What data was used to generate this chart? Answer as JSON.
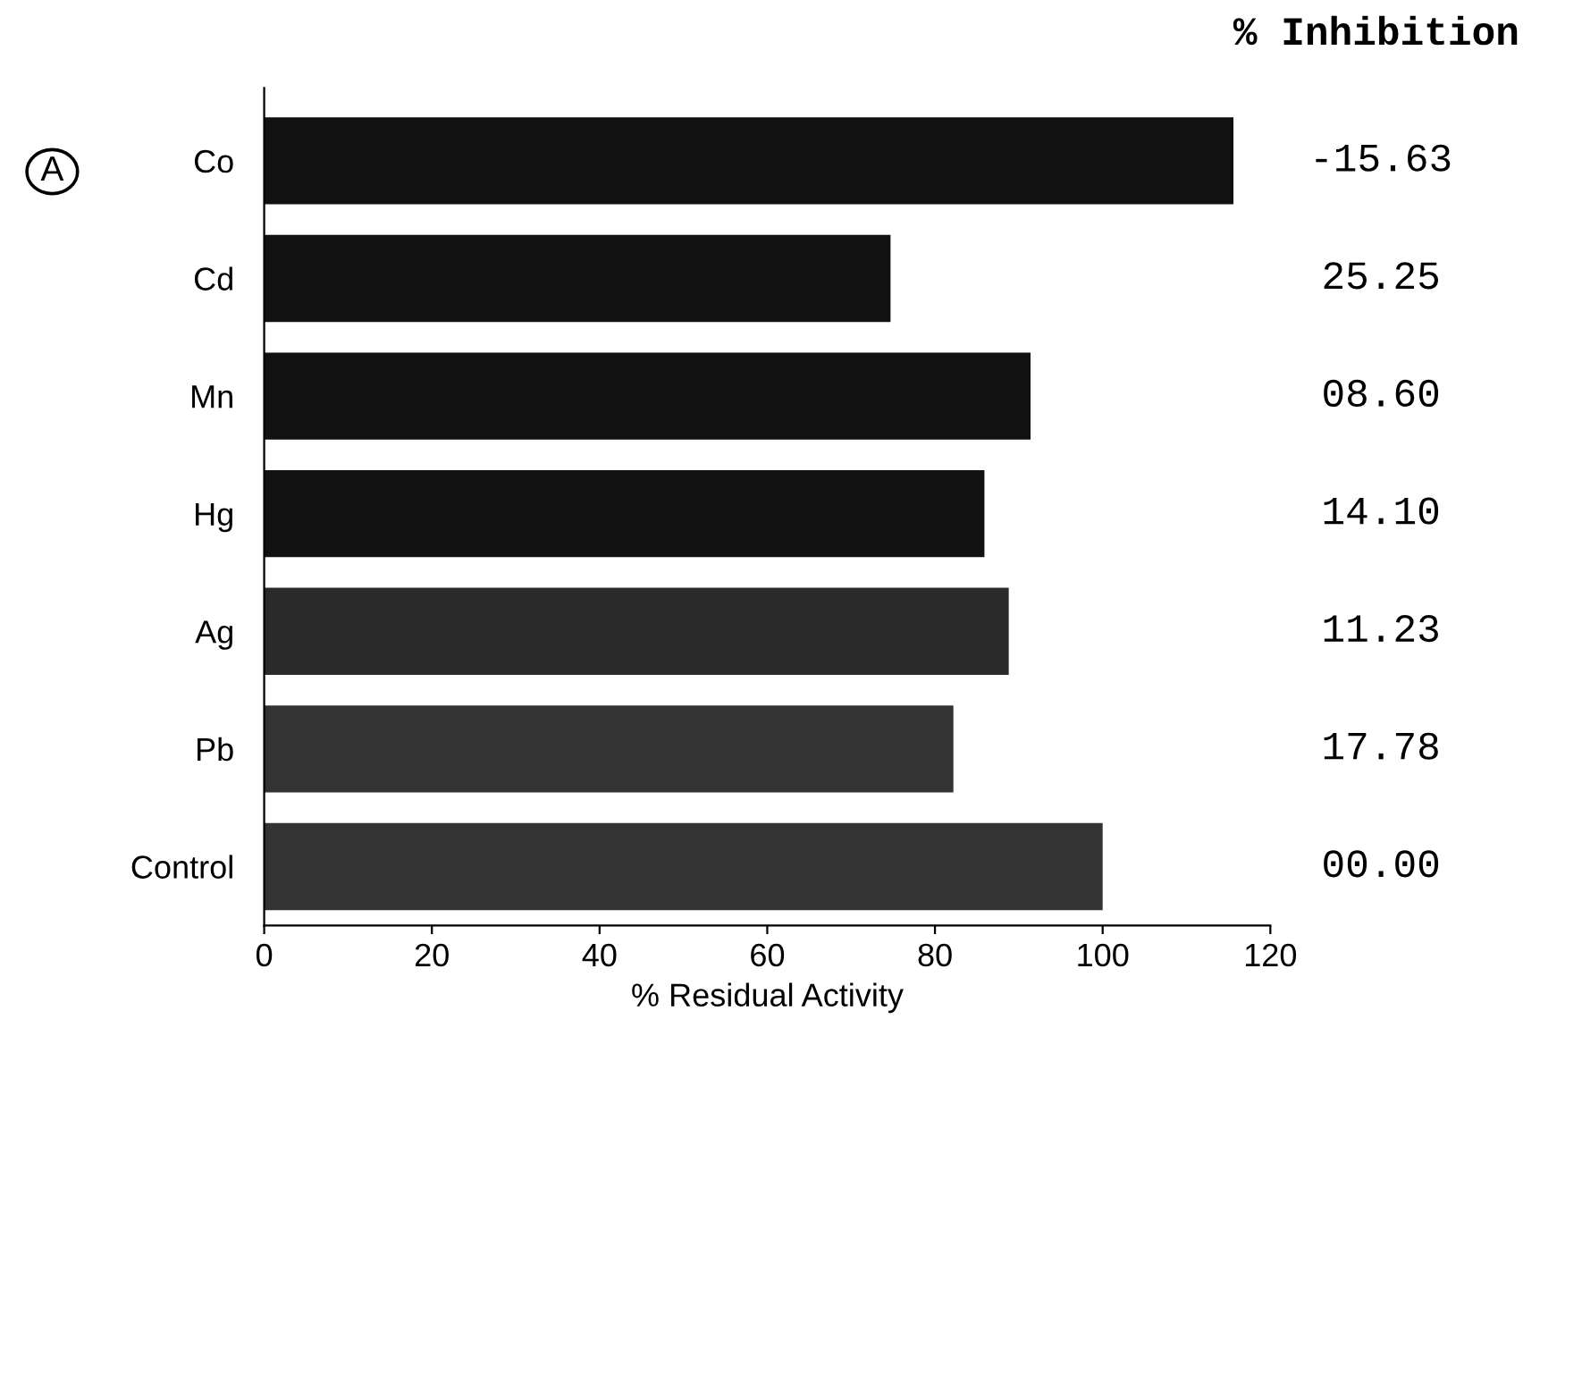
{
  "chart_data": {
    "type": "bar",
    "orientation": "horizontal",
    "xlabel": "% Residual Activity",
    "categories": [
      "Co",
      "Cd",
      "Mn",
      "Hg",
      "Ag",
      "Pb",
      "Control"
    ],
    "values": [
      115.6,
      74.7,
      91.4,
      85.9,
      88.8,
      82.2,
      100
    ],
    "colors": [
      "#111111",
      "#111111",
      "#111111",
      "#111111",
      "#2a2a2a",
      "#333333",
      "#333333"
    ],
    "xlim": [
      0,
      120
    ],
    "xticks": [
      0,
      20,
      40,
      60,
      80,
      100,
      120
    ],
    "annotations": [
      "% Inhibition",
      "A",
      "-15.63",
      "25.25",
      "08.60",
      "14.10",
      "11.23",
      "17.78",
      "00.00"
    ],
    "grid": false,
    "legend": false
  }
}
